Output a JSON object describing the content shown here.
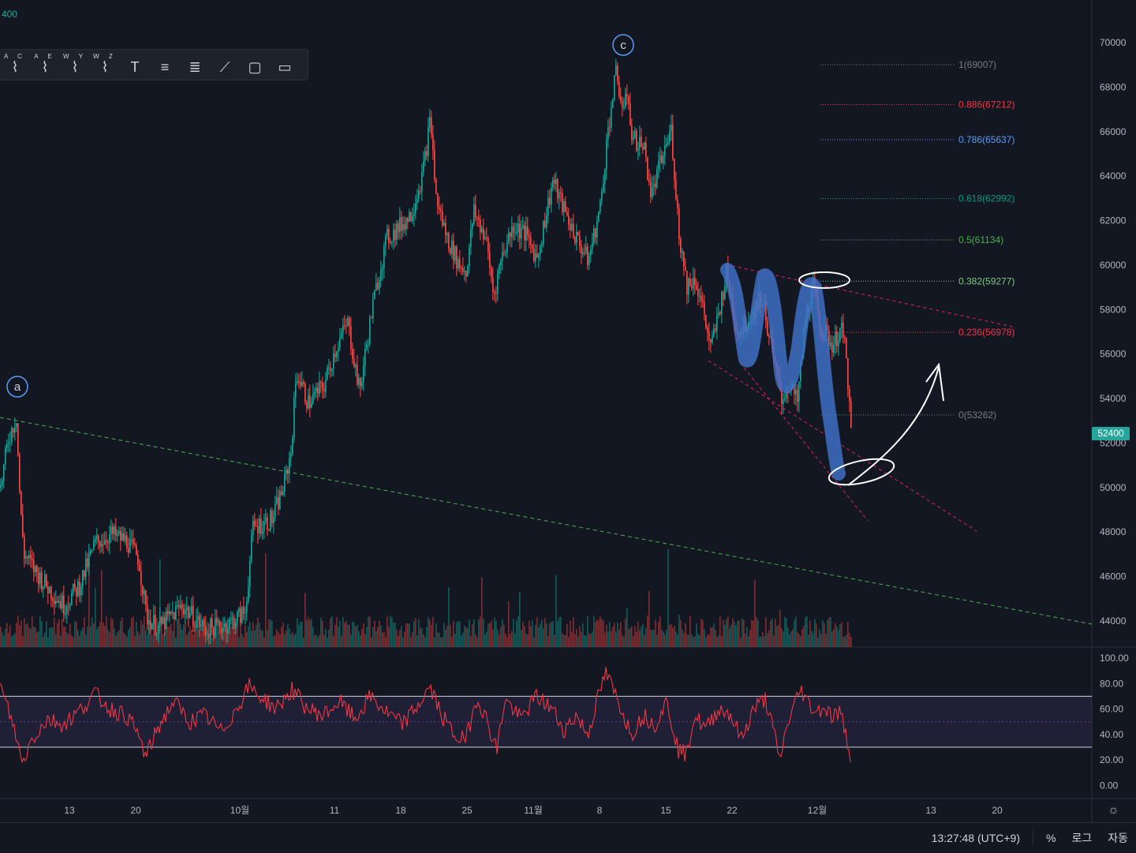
{
  "top_left_label": "400",
  "price_tag": "52400",
  "wave_labels": [
    "a",
    "c"
  ],
  "toolbar": {
    "tools": [
      {
        "name": "elliott-abc-tool",
        "letters": "A C"
      },
      {
        "name": "elliott-ae-tool",
        "letters": "A E"
      },
      {
        "name": "elliott-wxy-tool",
        "letters": "W Y"
      },
      {
        "name": "elliott-wxz-tool",
        "letters": "W Z"
      },
      {
        "name": "text-tool",
        "letters": ""
      },
      {
        "name": "measure-tool",
        "letters": ""
      },
      {
        "name": "lines-tool",
        "letters": ""
      },
      {
        "name": "brush-tool",
        "letters": ""
      },
      {
        "name": "rectangle-tool",
        "letters": ""
      },
      {
        "name": "comment-tool",
        "letters": ""
      }
    ]
  },
  "bottom_bar": {
    "time": "13:27:48 (UTC+9)",
    "percent": "%",
    "log": "로그",
    "auto": "자동"
  },
  "chart_data": [
    {
      "type": "candlestick",
      "ylim": [
        42000,
        71000
      ],
      "y_ticks": [
        70000,
        68000,
        66000,
        64000,
        62000,
        60000,
        58000,
        56000,
        54000,
        52000,
        50000,
        48000,
        46000,
        44000
      ],
      "x_ticks": [
        "13",
        "20",
        "10월",
        "11",
        "18",
        "25",
        "11월",
        "8",
        "15",
        "22",
        "12월",
        "13",
        "20"
      ],
      "last_price": 52400,
      "series_path": [
        [
          0,
          50000
        ],
        [
          10,
          52200
        ],
        [
          20,
          53200
        ],
        [
          25,
          49000
        ],
        [
          30,
          47000
        ],
        [
          45,
          46200
        ],
        [
          60,
          45500
        ],
        [
          80,
          44700
        ],
        [
          100,
          45600
        ],
        [
          120,
          47500
        ],
        [
          140,
          47900
        ],
        [
          160,
          47600
        ],
        [
          175,
          46800
        ],
        [
          185,
          44200
        ],
        [
          200,
          43700
        ],
        [
          230,
          44700
        ],
        [
          260,
          43600
        ],
        [
          290,
          43900
        ],
        [
          310,
          44400
        ],
        [
          320,
          48200
        ],
        [
          345,
          48600
        ],
        [
          360,
          50200
        ],
        [
          368,
          51600
        ],
        [
          375,
          55200
        ],
        [
          390,
          53800
        ],
        [
          410,
          54600
        ],
        [
          425,
          56300
        ],
        [
          440,
          57400
        ],
        [
          455,
          54300
        ],
        [
          470,
          57800
        ],
        [
          480,
          59700
        ],
        [
          490,
          61200
        ],
        [
          505,
          61700
        ],
        [
          520,
          62300
        ],
        [
          535,
          64100
        ],
        [
          545,
          66600
        ],
        [
          552,
          63000
        ],
        [
          565,
          61300
        ],
        [
          580,
          60100
        ],
        [
          590,
          59700
        ],
        [
          600,
          62400
        ],
        [
          615,
          61200
        ],
        [
          625,
          58600
        ],
        [
          635,
          60400
        ],
        [
          650,
          61800
        ],
        [
          665,
          61400
        ],
        [
          680,
          60300
        ],
        [
          700,
          63800
        ],
        [
          715,
          62400
        ],
        [
          730,
          61200
        ],
        [
          745,
          60200
        ],
        [
          760,
          62600
        ],
        [
          770,
          66100
        ],
        [
          780,
          68600
        ],
        [
          790,
          66800
        ],
        [
          795,
          68000
        ],
        [
          800,
          65700
        ],
        [
          815,
          65400
        ],
        [
          825,
          63100
        ],
        [
          835,
          64400
        ],
        [
          850,
          66100
        ],
        [
          860,
          61400
        ],
        [
          870,
          59100
        ],
        [
          880,
          59400
        ],
        [
          890,
          58100
        ],
        [
          900,
          56200
        ],
        [
          910,
          57800
        ],
        [
          920,
          59600
        ],
        [
          935,
          56900
        ],
        [
          950,
          57700
        ],
        [
          965,
          58600
        ],
        [
          980,
          55700
        ],
        [
          990,
          54000
        ],
        [
          1000,
          54600
        ],
        [
          1010,
          53800
        ],
        [
          1020,
          57600
        ],
        [
          1030,
          59000
        ],
        [
          1040,
          57100
        ],
        [
          1055,
          56400
        ],
        [
          1065,
          57100
        ],
        [
          1072,
          56100
        ],
        [
          1078,
          52400
        ]
      ],
      "fibonacci": [
        {
          "label": "1(69007)",
          "value": 69007,
          "color": "#787b86"
        },
        {
          "label": "0.886(67212)",
          "value": 67212,
          "color": "#f23645"
        },
        {
          "label": "0.786(65637)",
          "value": 65637,
          "color": "#5b9cf6"
        },
        {
          "label": "0.618(62992)",
          "value": 62992,
          "color": "#089981"
        },
        {
          "label": "0.5(61134)",
          "value": 61134,
          "color": "#4caf50"
        },
        {
          "label": "0.382(59277)",
          "value": 59277,
          "color": "#81c784"
        },
        {
          "label": "0.236(56978)",
          "value": 56978,
          "color": "#f23645"
        },
        {
          "label": "0(53262)",
          "value": 53262,
          "color": "#787b86"
        }
      ]
    },
    {
      "type": "line",
      "ylim": [
        0,
        100
      ],
      "y_ticks": [
        "100.00",
        "80.00",
        "60.00",
        "40.00",
        "20.00",
        "0.00"
      ],
      "band": [
        30,
        70
      ],
      "series_path": [
        [
          0,
          78
        ],
        [
          10,
          60
        ],
        [
          20,
          40
        ],
        [
          28,
          17
        ],
        [
          40,
          36
        ],
        [
          60,
          52
        ],
        [
          80,
          48
        ],
        [
          100,
          58
        ],
        [
          120,
          72
        ],
        [
          140,
          60
        ],
        [
          160,
          55
        ],
        [
          175,
          40
        ],
        [
          185,
          22
        ],
        [
          200,
          45
        ],
        [
          220,
          66
        ],
        [
          240,
          50
        ],
        [
          260,
          55
        ],
        [
          280,
          42
        ],
        [
          300,
          60
        ],
        [
          315,
          78
        ],
        [
          330,
          70
        ],
        [
          350,
          60
        ],
        [
          370,
          75
        ],
        [
          390,
          60
        ],
        [
          410,
          55
        ],
        [
          430,
          66
        ],
        [
          450,
          52
        ],
        [
          470,
          70
        ],
        [
          490,
          57
        ],
        [
          510,
          48
        ],
        [
          530,
          63
        ],
        [
          545,
          77
        ],
        [
          560,
          55
        ],
        [
          575,
          40
        ],
        [
          590,
          35
        ],
        [
          605,
          70
        ],
        [
          620,
          46
        ],
        [
          630,
          28
        ],
        [
          640,
          68
        ],
        [
          660,
          52
        ],
        [
          680,
          70
        ],
        [
          700,
          60
        ],
        [
          715,
          43
        ],
        [
          730,
          55
        ],
        [
          745,
          40
        ],
        [
          760,
          73
        ],
        [
          768,
          88
        ],
        [
          778,
          74
        ],
        [
          790,
          57
        ],
        [
          800,
          40
        ],
        [
          815,
          55
        ],
        [
          830,
          48
        ],
        [
          845,
          66
        ],
        [
          860,
          28
        ],
        [
          870,
          24
        ],
        [
          880,
          55
        ],
        [
          895,
          44
        ],
        [
          910,
          60
        ],
        [
          925,
          57
        ],
        [
          940,
          36
        ],
        [
          955,
          60
        ],
        [
          970,
          68
        ],
        [
          980,
          44
        ],
        [
          988,
          20
        ],
        [
          1000,
          52
        ],
        [
          1015,
          76
        ],
        [
          1025,
          64
        ],
        [
          1035,
          58
        ],
        [
          1045,
          62
        ],
        [
          1055,
          54
        ],
        [
          1065,
          58
        ],
        [
          1072,
          40
        ],
        [
          1078,
          24
        ]
      ]
    }
  ]
}
